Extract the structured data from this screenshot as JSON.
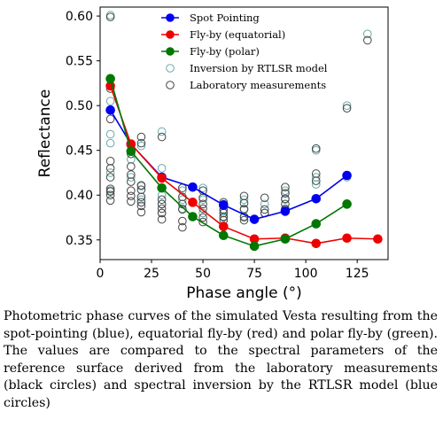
{
  "chart_data": {
    "type": "scatter",
    "title": "",
    "xlabel": "Phase angle (°)",
    "ylabel": "Reflectance",
    "xlim": [
      0,
      140
    ],
    "ylim": [
      0.328,
      0.61
    ],
    "xticks": [
      0,
      25,
      50,
      75,
      100,
      125
    ],
    "yticks": [
      0.35,
      0.4,
      0.45,
      0.5,
      0.55,
      0.6
    ],
    "ytick_labels": [
      "0.35",
      "0.40",
      "0.45",
      "0.50",
      "0.55",
      "0.60"
    ],
    "legend_position": "top-center",
    "grid": false,
    "series": [
      {
        "name": "Spot Pointing",
        "color": "#0000ee",
        "style": "line-marker",
        "x": [
          5,
          15,
          30,
          45,
          60,
          75,
          90,
          105,
          120
        ],
        "y": [
          0.495,
          0.457,
          0.42,
          0.409,
          0.389,
          0.373,
          0.382,
          0.396,
          0.422
        ]
      },
      {
        "name": "Fly-by (equatorial)",
        "color": "#ee0000",
        "style": "line-marker",
        "x": [
          5,
          15,
          30,
          45,
          60,
          75,
          90,
          105,
          120,
          135
        ],
        "y": [
          0.522,
          0.457,
          0.419,
          0.392,
          0.365,
          0.351,
          0.352,
          0.346,
          0.352,
          0.351
        ]
      },
      {
        "name": "Fly-by (polar)",
        "color": "#007700",
        "style": "line-marker",
        "x": [
          5,
          15,
          30,
          45,
          60,
          75,
          90,
          105,
          120
        ],
        "y": [
          0.53,
          0.449,
          0.408,
          0.376,
          0.355,
          0.343,
          0.351,
          0.368,
          0.39
        ]
      },
      {
        "name": "Inversion by RTLSR model",
        "color": "#66aaaa",
        "style": "open-circle",
        "x": [
          5,
          5,
          5,
          5,
          5,
          5,
          15,
          15,
          15,
          20,
          20,
          20,
          30,
          30,
          30,
          30,
          30,
          40,
          40,
          40,
          50,
          50,
          50,
          60,
          60,
          60,
          70,
          70,
          70,
          80,
          80,
          90,
          90,
          90,
          105,
          105,
          105,
          120,
          120,
          130
        ],
        "y": [
          0.601,
          0.505,
          0.468,
          0.458,
          0.425,
          0.405,
          0.455,
          0.44,
          0.42,
          0.455,
          0.41,
          0.395,
          0.471,
          0.43,
          0.4,
          0.39,
          0.38,
          0.405,
          0.395,
          0.385,
          0.408,
          0.395,
          0.38,
          0.39,
          0.382,
          0.375,
          0.395,
          0.385,
          0.375,
          0.39,
          0.38,
          0.405,
          0.395,
          0.385,
          0.45,
          0.42,
          0.412,
          0.5,
          0.42,
          0.58
        ]
      },
      {
        "name": "Laboratory measurements",
        "color": "#444444",
        "style": "open-circle",
        "x": [
          5,
          5,
          5,
          5,
          5,
          5,
          5,
          5,
          5,
          5,
          15,
          15,
          15,
          15,
          15,
          15,
          15,
          15,
          20,
          20,
          20,
          20,
          20,
          20,
          20,
          20,
          30,
          30,
          30,
          30,
          30,
          30,
          30,
          40,
          40,
          40,
          40,
          40,
          40,
          50,
          50,
          50,
          50,
          50,
          50,
          60,
          60,
          60,
          60,
          60,
          60,
          70,
          70,
          70,
          70,
          70,
          80,
          80,
          80,
          90,
          90,
          90,
          90,
          90,
          105,
          105,
          105,
          120,
          130
        ],
        "y": [
          0.599,
          0.519,
          0.485,
          0.438,
          0.43,
          0.42,
          0.407,
          0.404,
          0.4,
          0.394,
          0.456,
          0.446,
          0.432,
          0.423,
          0.415,
          0.405,
          0.399,
          0.393,
          0.465,
          0.458,
          0.411,
          0.406,
          0.398,
          0.392,
          0.388,
          0.381,
          0.465,
          0.42,
          0.395,
          0.39,
          0.385,
          0.38,
          0.373,
          0.408,
          0.398,
          0.39,
          0.384,
          0.371,
          0.364,
          0.405,
          0.397,
          0.39,
          0.385,
          0.375,
          0.37,
          0.392,
          0.388,
          0.384,
          0.38,
          0.376,
          0.372,
          0.399,
          0.391,
          0.384,
          0.376,
          0.372,
          0.397,
          0.384,
          0.38,
          0.409,
          0.402,
          0.396,
          0.39,
          0.384,
          0.452,
          0.424,
          0.416,
          0.497,
          0.573
        ]
      }
    ]
  },
  "caption": "Photometric phase curves of the simulated Vesta resulting from the spot-pointing (blue), equatorial fly-by (red) and polar fly-by (green). The values are compared to the spectral parameters of the reference surface derived from the laboratory measurements (black circles) and spectral inversion by the RTLSR model (blue circles)"
}
